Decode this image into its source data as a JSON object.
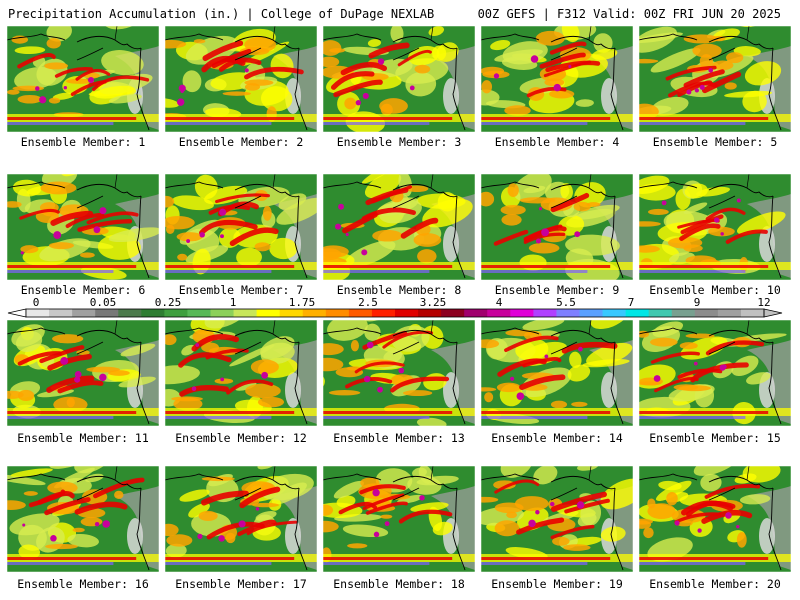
{
  "header": {
    "left_title": "Precipitation Accumulation (in.) | College of DuPage NEXLAB",
    "right_title": "00Z GEFS | F312 Valid: 00Z FRI JUN 20 2025"
  },
  "legend": {
    "tick_labels": [
      "0",
      "0.05",
      "0.25",
      "1",
      "1.75",
      "2.5",
      "3.25",
      "4",
      "5.5",
      "7",
      "9",
      "12"
    ],
    "colors": [
      "#e8e8e8",
      "#c8c8c8",
      "#a0a0a0",
      "#787878",
      "#4c7a4c",
      "#2e7d32",
      "#3f9f3f",
      "#58b858",
      "#8cd05a",
      "#c8e65a",
      "#ffff00",
      "#ffd700",
      "#ffb000",
      "#ff8c00",
      "#ff5a00",
      "#ff2000",
      "#e00000",
      "#b40000",
      "#8c0020",
      "#a0006e",
      "#c8009c",
      "#e000d8",
      "#b040ff",
      "#7f7fff",
      "#5aa0ff",
      "#38c8ff",
      "#00e6e6",
      "#40c8b0",
      "#78a090",
      "#8c8c8c",
      "#a0a0a0",
      "#c0c0c0"
    ]
  },
  "members": [
    {
      "label": "Ensemble Member: 1"
    },
    {
      "label": "Ensemble Member: 2"
    },
    {
      "label": "Ensemble Member: 3"
    },
    {
      "label": "Ensemble Member: 4"
    },
    {
      "label": "Ensemble Member: 5"
    },
    {
      "label": "Ensemble Member: 6"
    },
    {
      "label": "Ensemble Member: 7"
    },
    {
      "label": "Ensemble Member: 8"
    },
    {
      "label": "Ensemble Member: 9"
    },
    {
      "label": "Ensemble Member: 10"
    },
    {
      "label": "Ensemble Member: 11"
    },
    {
      "label": "Ensemble Member: 12"
    },
    {
      "label": "Ensemble Member: 13"
    },
    {
      "label": "Ensemble Member: 14"
    },
    {
      "label": "Ensemble Member: 15"
    },
    {
      "label": "Ensemble Member: 16"
    },
    {
      "label": "Ensemble Member: 17"
    },
    {
      "label": "Ensemble Member: 18"
    },
    {
      "label": "Ensemble Member: 19"
    },
    {
      "label": "Ensemble Member: 20"
    }
  ],
  "map_colors": {
    "ocean_green": "#2f8c2f",
    "dry_land": "#8a9a8a",
    "light_yellow": "#d8ec50",
    "yellow": "#ffff00",
    "orange": "#ffa500",
    "red": "#e80000",
    "magenta": "#c8009c",
    "purple": "#8060ff",
    "coast": "#000000"
  }
}
